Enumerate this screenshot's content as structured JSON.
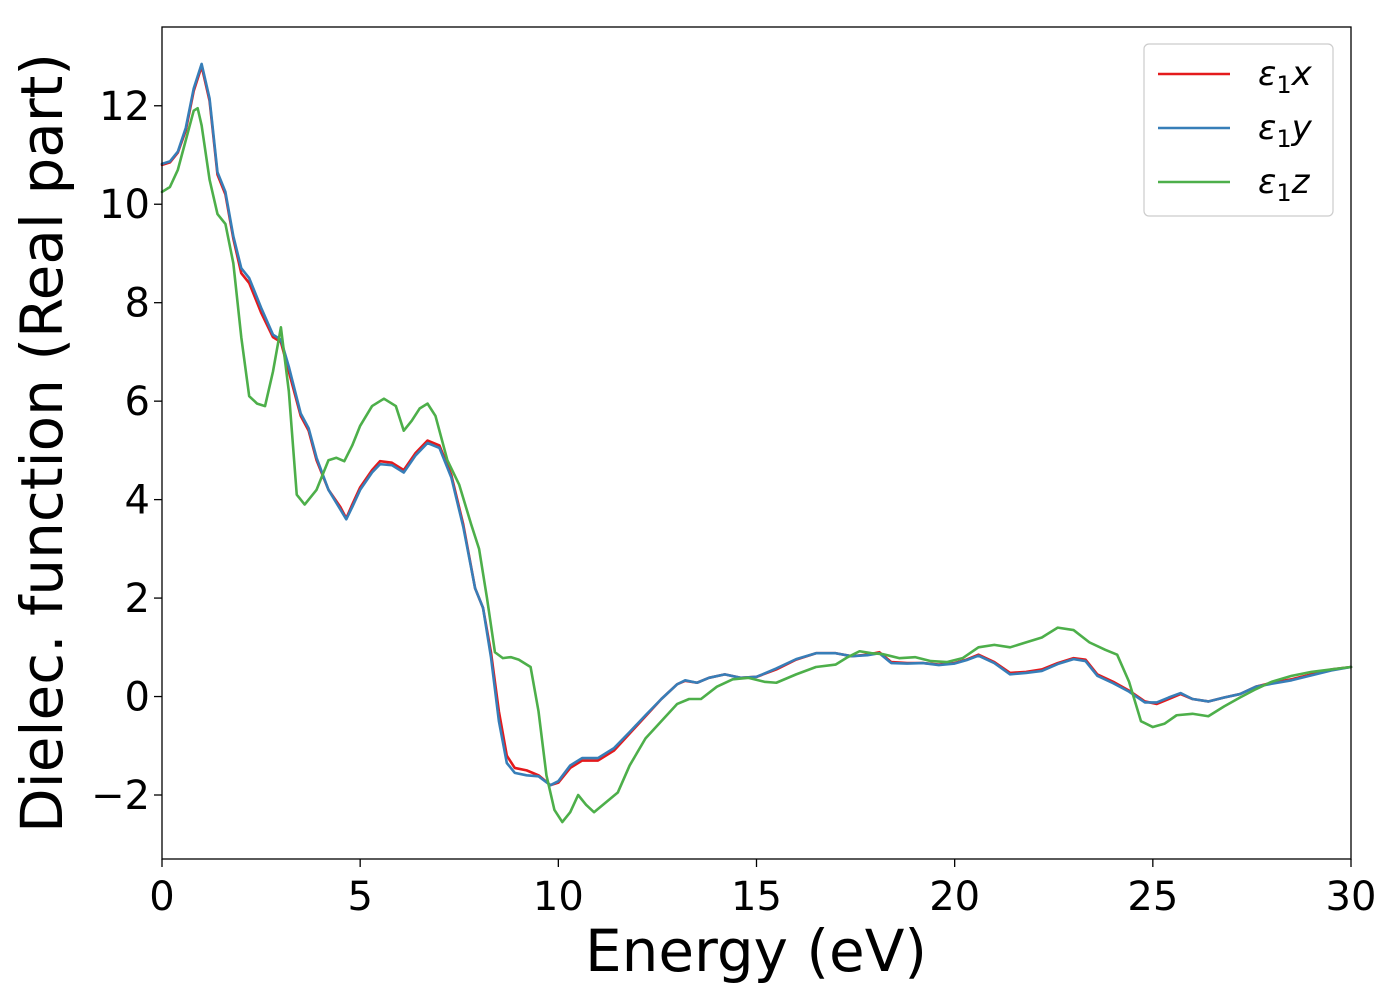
{
  "chart_data": {
    "type": "line",
    "title": "",
    "xlabel": "Energy (eV)",
    "ylabel": "Dielec. function (Real part)",
    "xlim": [
      0,
      30
    ],
    "ylim": [
      -3.3,
      13.6
    ],
    "xticks": [
      0,
      5,
      10,
      15,
      20,
      25,
      30
    ],
    "yticks": [
      -2,
      0,
      2,
      4,
      6,
      8,
      10,
      12
    ],
    "xtick_labels": [
      "0",
      "5",
      "10",
      "15",
      "20",
      "25",
      "30"
    ],
    "ytick_labels": [
      "−2",
      "0",
      "2",
      "4",
      "6",
      "8",
      "10",
      "12"
    ],
    "grid": false,
    "legend_position": "top-right",
    "series": [
      {
        "name": "ε1x",
        "label_main": "ε",
        "label_sub": "1",
        "label_suffix": "x",
        "color": "#e41a1c",
        "points": [
          [
            0,
            10.8
          ],
          [
            0.2,
            10.85
          ],
          [
            0.4,
            11.05
          ],
          [
            0.6,
            11.5
          ],
          [
            0.8,
            12.3
          ],
          [
            1.0,
            12.8
          ],
          [
            1.2,
            12.1
          ],
          [
            1.4,
            10.6
          ],
          [
            1.6,
            10.2
          ],
          [
            1.8,
            9.3
          ],
          [
            2.0,
            8.6
          ],
          [
            2.2,
            8.4
          ],
          [
            2.5,
            7.8
          ],
          [
            2.8,
            7.3
          ],
          [
            3.0,
            7.2
          ],
          [
            3.2,
            6.6
          ],
          [
            3.5,
            5.7
          ],
          [
            3.7,
            5.4
          ],
          [
            3.9,
            4.8
          ],
          [
            4.2,
            4.2
          ],
          [
            4.5,
            3.85
          ],
          [
            4.65,
            3.62
          ],
          [
            4.8,
            3.9
          ],
          [
            5.0,
            4.25
          ],
          [
            5.3,
            4.6
          ],
          [
            5.5,
            4.78
          ],
          [
            5.8,
            4.75
          ],
          [
            6.1,
            4.6
          ],
          [
            6.4,
            4.95
          ],
          [
            6.7,
            5.2
          ],
          [
            7.0,
            5.1
          ],
          [
            7.3,
            4.5
          ],
          [
            7.6,
            3.5
          ],
          [
            7.9,
            2.2
          ],
          [
            8.1,
            1.8
          ],
          [
            8.3,
            0.9
          ],
          [
            8.5,
            -0.3
          ],
          [
            8.7,
            -1.2
          ],
          [
            8.9,
            -1.45
          ],
          [
            9.2,
            -1.5
          ],
          [
            9.5,
            -1.6
          ],
          [
            9.8,
            -1.8
          ],
          [
            10.0,
            -1.75
          ],
          [
            10.3,
            -1.45
          ],
          [
            10.6,
            -1.3
          ],
          [
            11.0,
            -1.3
          ],
          [
            11.4,
            -1.1
          ],
          [
            11.8,
            -0.75
          ],
          [
            12.2,
            -0.4
          ],
          [
            12.6,
            -0.05
          ],
          [
            13.0,
            0.25
          ],
          [
            13.2,
            0.32
          ],
          [
            13.5,
            0.28
          ],
          [
            13.8,
            0.38
          ],
          [
            14.2,
            0.45
          ],
          [
            14.6,
            0.38
          ],
          [
            15.0,
            0.4
          ],
          [
            15.5,
            0.55
          ],
          [
            16.0,
            0.75
          ],
          [
            16.5,
            0.88
          ],
          [
            17.0,
            0.88
          ],
          [
            17.4,
            0.82
          ],
          [
            17.8,
            0.85
          ],
          [
            18.1,
            0.9
          ],
          [
            18.4,
            0.7
          ],
          [
            18.8,
            0.68
          ],
          [
            19.2,
            0.68
          ],
          [
            19.6,
            0.65
          ],
          [
            20.0,
            0.68
          ],
          [
            20.3,
            0.75
          ],
          [
            20.6,
            0.85
          ],
          [
            21.0,
            0.7
          ],
          [
            21.4,
            0.48
          ],
          [
            21.8,
            0.5
          ],
          [
            22.2,
            0.55
          ],
          [
            22.6,
            0.68
          ],
          [
            23.0,
            0.78
          ],
          [
            23.3,
            0.75
          ],
          [
            23.6,
            0.45
          ],
          [
            24.0,
            0.3
          ],
          [
            24.4,
            0.12
          ],
          [
            24.8,
            -0.1
          ],
          [
            25.1,
            -0.15
          ],
          [
            25.4,
            -0.05
          ],
          [
            25.7,
            0.05
          ],
          [
            26.0,
            -0.05
          ],
          [
            26.4,
            -0.1
          ],
          [
            26.8,
            -0.02
          ],
          [
            27.2,
            0.05
          ],
          [
            27.6,
            0.2
          ],
          [
            28.0,
            0.28
          ],
          [
            28.5,
            0.35
          ],
          [
            29.0,
            0.45
          ],
          [
            29.5,
            0.55
          ],
          [
            30.0,
            0.6
          ]
        ]
      },
      {
        "name": "ε1y",
        "label_main": "ε",
        "label_sub": "1",
        "label_suffix": "y",
        "color": "#377eb8",
        "points": [
          [
            0,
            10.82
          ],
          [
            0.2,
            10.87
          ],
          [
            0.4,
            11.07
          ],
          [
            0.6,
            11.55
          ],
          [
            0.8,
            12.35
          ],
          [
            1.0,
            12.85
          ],
          [
            1.2,
            12.15
          ],
          [
            1.4,
            10.65
          ],
          [
            1.6,
            10.25
          ],
          [
            1.8,
            9.35
          ],
          [
            2.0,
            8.7
          ],
          [
            2.2,
            8.5
          ],
          [
            2.5,
            7.9
          ],
          [
            2.8,
            7.35
          ],
          [
            3.0,
            7.25
          ],
          [
            3.2,
            6.7
          ],
          [
            3.5,
            5.75
          ],
          [
            3.7,
            5.45
          ],
          [
            3.9,
            4.85
          ],
          [
            4.2,
            4.2
          ],
          [
            4.5,
            3.8
          ],
          [
            4.65,
            3.6
          ],
          [
            4.8,
            3.85
          ],
          [
            5.0,
            4.2
          ],
          [
            5.3,
            4.55
          ],
          [
            5.5,
            4.72
          ],
          [
            5.8,
            4.7
          ],
          [
            6.1,
            4.55
          ],
          [
            6.4,
            4.9
          ],
          [
            6.7,
            5.15
          ],
          [
            7.0,
            5.05
          ],
          [
            7.3,
            4.45
          ],
          [
            7.6,
            3.45
          ],
          [
            7.9,
            2.2
          ],
          [
            8.1,
            1.8
          ],
          [
            8.3,
            0.8
          ],
          [
            8.5,
            -0.5
          ],
          [
            8.7,
            -1.35
          ],
          [
            8.9,
            -1.55
          ],
          [
            9.2,
            -1.6
          ],
          [
            9.5,
            -1.62
          ],
          [
            9.8,
            -1.8
          ],
          [
            10.0,
            -1.72
          ],
          [
            10.3,
            -1.4
          ],
          [
            10.6,
            -1.25
          ],
          [
            11.0,
            -1.25
          ],
          [
            11.4,
            -1.05
          ],
          [
            11.8,
            -0.72
          ],
          [
            12.2,
            -0.38
          ],
          [
            12.6,
            -0.05
          ],
          [
            13.0,
            0.25
          ],
          [
            13.2,
            0.33
          ],
          [
            13.5,
            0.28
          ],
          [
            13.8,
            0.38
          ],
          [
            14.2,
            0.45
          ],
          [
            14.6,
            0.38
          ],
          [
            15.0,
            0.4
          ],
          [
            15.5,
            0.57
          ],
          [
            16.0,
            0.76
          ],
          [
            16.5,
            0.88
          ],
          [
            17.0,
            0.88
          ],
          [
            17.4,
            0.82
          ],
          [
            17.8,
            0.84
          ],
          [
            18.1,
            0.88
          ],
          [
            18.4,
            0.68
          ],
          [
            18.8,
            0.67
          ],
          [
            19.2,
            0.68
          ],
          [
            19.6,
            0.64
          ],
          [
            20.0,
            0.67
          ],
          [
            20.3,
            0.74
          ],
          [
            20.6,
            0.83
          ],
          [
            21.0,
            0.68
          ],
          [
            21.4,
            0.45
          ],
          [
            21.8,
            0.48
          ],
          [
            22.2,
            0.52
          ],
          [
            22.6,
            0.66
          ],
          [
            23.0,
            0.76
          ],
          [
            23.3,
            0.72
          ],
          [
            23.6,
            0.42
          ],
          [
            24.0,
            0.27
          ],
          [
            24.4,
            0.1
          ],
          [
            24.8,
            -0.12
          ],
          [
            25.1,
            -0.12
          ],
          [
            25.4,
            -0.02
          ],
          [
            25.7,
            0.07
          ],
          [
            26.0,
            -0.05
          ],
          [
            26.4,
            -0.1
          ],
          [
            26.8,
            -0.02
          ],
          [
            27.2,
            0.05
          ],
          [
            27.6,
            0.2
          ],
          [
            28.0,
            0.26
          ],
          [
            28.5,
            0.33
          ],
          [
            29.0,
            0.43
          ],
          [
            29.5,
            0.53
          ],
          [
            30.0,
            0.6
          ]
        ]
      },
      {
        "name": "ε1z",
        "label_main": "ε",
        "label_sub": "1",
        "label_suffix": "z",
        "color": "#4daf4a",
        "points": [
          [
            0,
            10.25
          ],
          [
            0.2,
            10.35
          ],
          [
            0.4,
            10.7
          ],
          [
            0.6,
            11.3
          ],
          [
            0.8,
            11.9
          ],
          [
            0.9,
            11.95
          ],
          [
            1.0,
            11.6
          ],
          [
            1.2,
            10.5
          ],
          [
            1.4,
            9.8
          ],
          [
            1.6,
            9.6
          ],
          [
            1.8,
            8.8
          ],
          [
            2.0,
            7.3
          ],
          [
            2.2,
            6.1
          ],
          [
            2.4,
            5.95
          ],
          [
            2.6,
            5.9
          ],
          [
            2.8,
            6.6
          ],
          [
            3.0,
            7.5
          ],
          [
            3.2,
            6.2
          ],
          [
            3.4,
            4.1
          ],
          [
            3.6,
            3.9
          ],
          [
            3.9,
            4.2
          ],
          [
            4.2,
            4.8
          ],
          [
            4.4,
            4.85
          ],
          [
            4.6,
            4.78
          ],
          [
            4.8,
            5.1
          ],
          [
            5.0,
            5.5
          ],
          [
            5.3,
            5.9
          ],
          [
            5.6,
            6.05
          ],
          [
            5.9,
            5.9
          ],
          [
            6.1,
            5.4
          ],
          [
            6.3,
            5.6
          ],
          [
            6.5,
            5.85
          ],
          [
            6.7,
            5.95
          ],
          [
            6.9,
            5.7
          ],
          [
            7.2,
            4.8
          ],
          [
            7.5,
            4.3
          ],
          [
            7.8,
            3.5
          ],
          [
            8.0,
            3.0
          ],
          [
            8.2,
            2.0
          ],
          [
            8.4,
            0.9
          ],
          [
            8.6,
            0.78
          ],
          [
            8.8,
            0.8
          ],
          [
            9.0,
            0.75
          ],
          [
            9.3,
            0.6
          ],
          [
            9.5,
            -0.3
          ],
          [
            9.7,
            -1.6
          ],
          [
            9.9,
            -2.3
          ],
          [
            10.1,
            -2.55
          ],
          [
            10.3,
            -2.35
          ],
          [
            10.5,
            -2.0
          ],
          [
            10.7,
            -2.2
          ],
          [
            10.9,
            -2.35
          ],
          [
            11.2,
            -2.15
          ],
          [
            11.5,
            -1.95
          ],
          [
            11.8,
            -1.4
          ],
          [
            12.2,
            -0.85
          ],
          [
            12.6,
            -0.5
          ],
          [
            13.0,
            -0.15
          ],
          [
            13.3,
            -0.05
          ],
          [
            13.6,
            -0.05
          ],
          [
            14.0,
            0.2
          ],
          [
            14.4,
            0.35
          ],
          [
            14.8,
            0.38
          ],
          [
            15.2,
            0.3
          ],
          [
            15.5,
            0.28
          ],
          [
            16.0,
            0.45
          ],
          [
            16.5,
            0.6
          ],
          [
            17.0,
            0.65
          ],
          [
            17.3,
            0.8
          ],
          [
            17.6,
            0.92
          ],
          [
            17.9,
            0.88
          ],
          [
            18.2,
            0.86
          ],
          [
            18.6,
            0.78
          ],
          [
            19.0,
            0.8
          ],
          [
            19.4,
            0.72
          ],
          [
            19.8,
            0.7
          ],
          [
            20.2,
            0.78
          ],
          [
            20.6,
            1.0
          ],
          [
            21.0,
            1.05
          ],
          [
            21.4,
            1.0
          ],
          [
            21.8,
            1.1
          ],
          [
            22.2,
            1.2
          ],
          [
            22.6,
            1.4
          ],
          [
            23.0,
            1.35
          ],
          [
            23.4,
            1.1
          ],
          [
            23.8,
            0.95
          ],
          [
            24.1,
            0.85
          ],
          [
            24.4,
            0.3
          ],
          [
            24.7,
            -0.5
          ],
          [
            25.0,
            -0.62
          ],
          [
            25.3,
            -0.55
          ],
          [
            25.6,
            -0.38
          ],
          [
            26.0,
            -0.35
          ],
          [
            26.4,
            -0.4
          ],
          [
            26.8,
            -0.2
          ],
          [
            27.2,
            -0.02
          ],
          [
            27.6,
            0.15
          ],
          [
            28.0,
            0.3
          ],
          [
            28.5,
            0.42
          ],
          [
            29.0,
            0.5
          ],
          [
            29.5,
            0.55
          ],
          [
            30.0,
            0.6
          ]
        ]
      }
    ]
  }
}
